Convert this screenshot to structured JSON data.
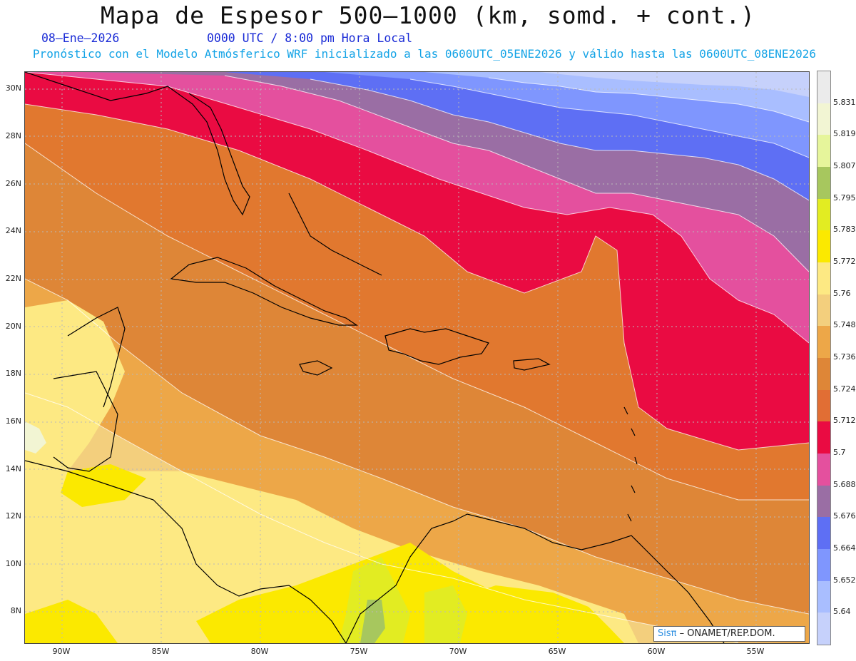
{
  "title": "Mapa de Espesor 500–1000 (km, somd. + cont.)",
  "date": "08–Ene–2026",
  "time": "0000 UTC / 8:00 pm Hora Local",
  "model_line": "Pronóstico con el Modelo Atmósferico WRF inicializado a las 0600UTC_05ENE2026 y válido hasta las  0600UTC_08ENE2026",
  "lat_labels": [
    "30N",
    "28N",
    "26N",
    "24N",
    "22N",
    "20N",
    "18N",
    "16N",
    "14N",
    "12N",
    "10N",
    "8N"
  ],
  "lon_labels": [
    "90W",
    "85W",
    "80W",
    "75W",
    "70W",
    "65W",
    "60W",
    "55W"
  ],
  "colorbar": {
    "labels": [
      "5.831",
      "5.819",
      "5.807",
      "5.795",
      "5.783",
      "5.772",
      "5.76",
      "5.748",
      "5.736",
      "5.724",
      "5.712",
      "5.7",
      "5.688",
      "5.676",
      "5.664",
      "5.652",
      "5.64"
    ],
    "colors": [
      "#ebebeb",
      "#f2f5d3",
      "#e6f59b",
      "#a7c75e",
      "#e2ec22",
      "#fbe900",
      "#fde983",
      "#f3cf7d",
      "#eda748",
      "#de8637",
      "#e16e34",
      "#ea0b42",
      "#e4509e",
      "#9a6ea4",
      "#5e6ff4",
      "#7f96fe",
      "#a9beff",
      "#c6d1fb"
    ]
  },
  "credit": {
    "brand": "Sisπ",
    "text": " – ONAMET/REP.DOM."
  }
}
